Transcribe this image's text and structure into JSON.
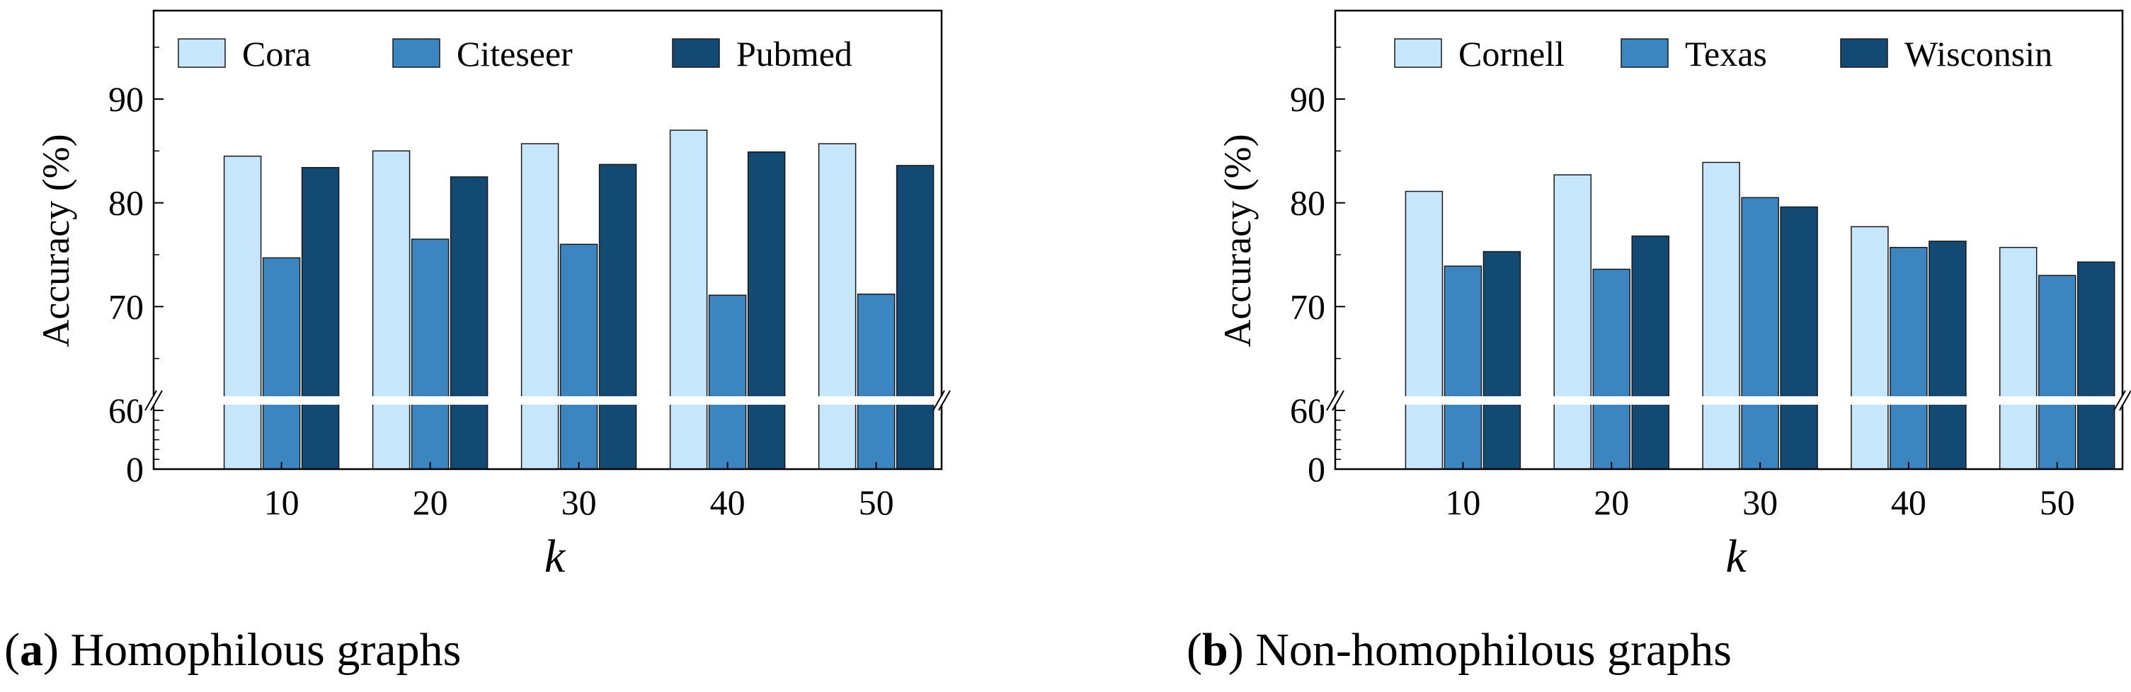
{
  "figure": {
    "panels": [
      {
        "caption_letter": "a",
        "caption_text": "Homophilous graphs",
        "chart_data": {
          "type": "bar",
          "title": "",
          "xlabel": "k",
          "ylabel": "Accuracy (%)",
          "categories": [
            "10",
            "20",
            "30",
            "40",
            "50"
          ],
          "series": [
            {
              "name": "Cora",
              "color": "#c6e6fb",
              "values": [
                84.5,
                85.0,
                85.7,
                87.0,
                85.7
              ]
            },
            {
              "name": "Citeseer",
              "color": "#3b86c1",
              "values": [
                74.7,
                76.5,
                76.0,
                71.1,
                71.2
              ]
            },
            {
              "name": "Pubmed",
              "color": "#134a73",
              "values": [
                83.4,
                82.5,
                83.7,
                84.9,
                83.6
              ]
            }
          ],
          "ylim": [
            0,
            98
          ],
          "axis_break": [
            0,
            60
          ],
          "yticks": [
            0,
            60,
            70,
            80,
            90
          ],
          "legend_position": "top"
        }
      },
      {
        "caption_letter": "b",
        "caption_text": "Non-homophilous graphs",
        "chart_data": {
          "type": "bar",
          "title": "",
          "xlabel": "k",
          "ylabel": "Accuracy (%)",
          "categories": [
            "10",
            "20",
            "30",
            "40",
            "50"
          ],
          "series": [
            {
              "name": "Cornell",
              "color": "#c6e6fb",
              "values": [
                81.1,
                82.7,
                83.9,
                77.7,
                75.7
              ]
            },
            {
              "name": "Texas",
              "color": "#3b86c1",
              "values": [
                73.9,
                73.6,
                80.5,
                75.7,
                73.0
              ]
            },
            {
              "name": "Wisconsin",
              "color": "#134a73",
              "values": [
                75.3,
                76.8,
                79.6,
                76.3,
                74.3
              ]
            }
          ],
          "ylim": [
            0,
            98
          ],
          "axis_break": [
            0,
            60
          ],
          "yticks": [
            0,
            60,
            70,
            80,
            90
          ],
          "legend_position": "top"
        }
      }
    ]
  }
}
